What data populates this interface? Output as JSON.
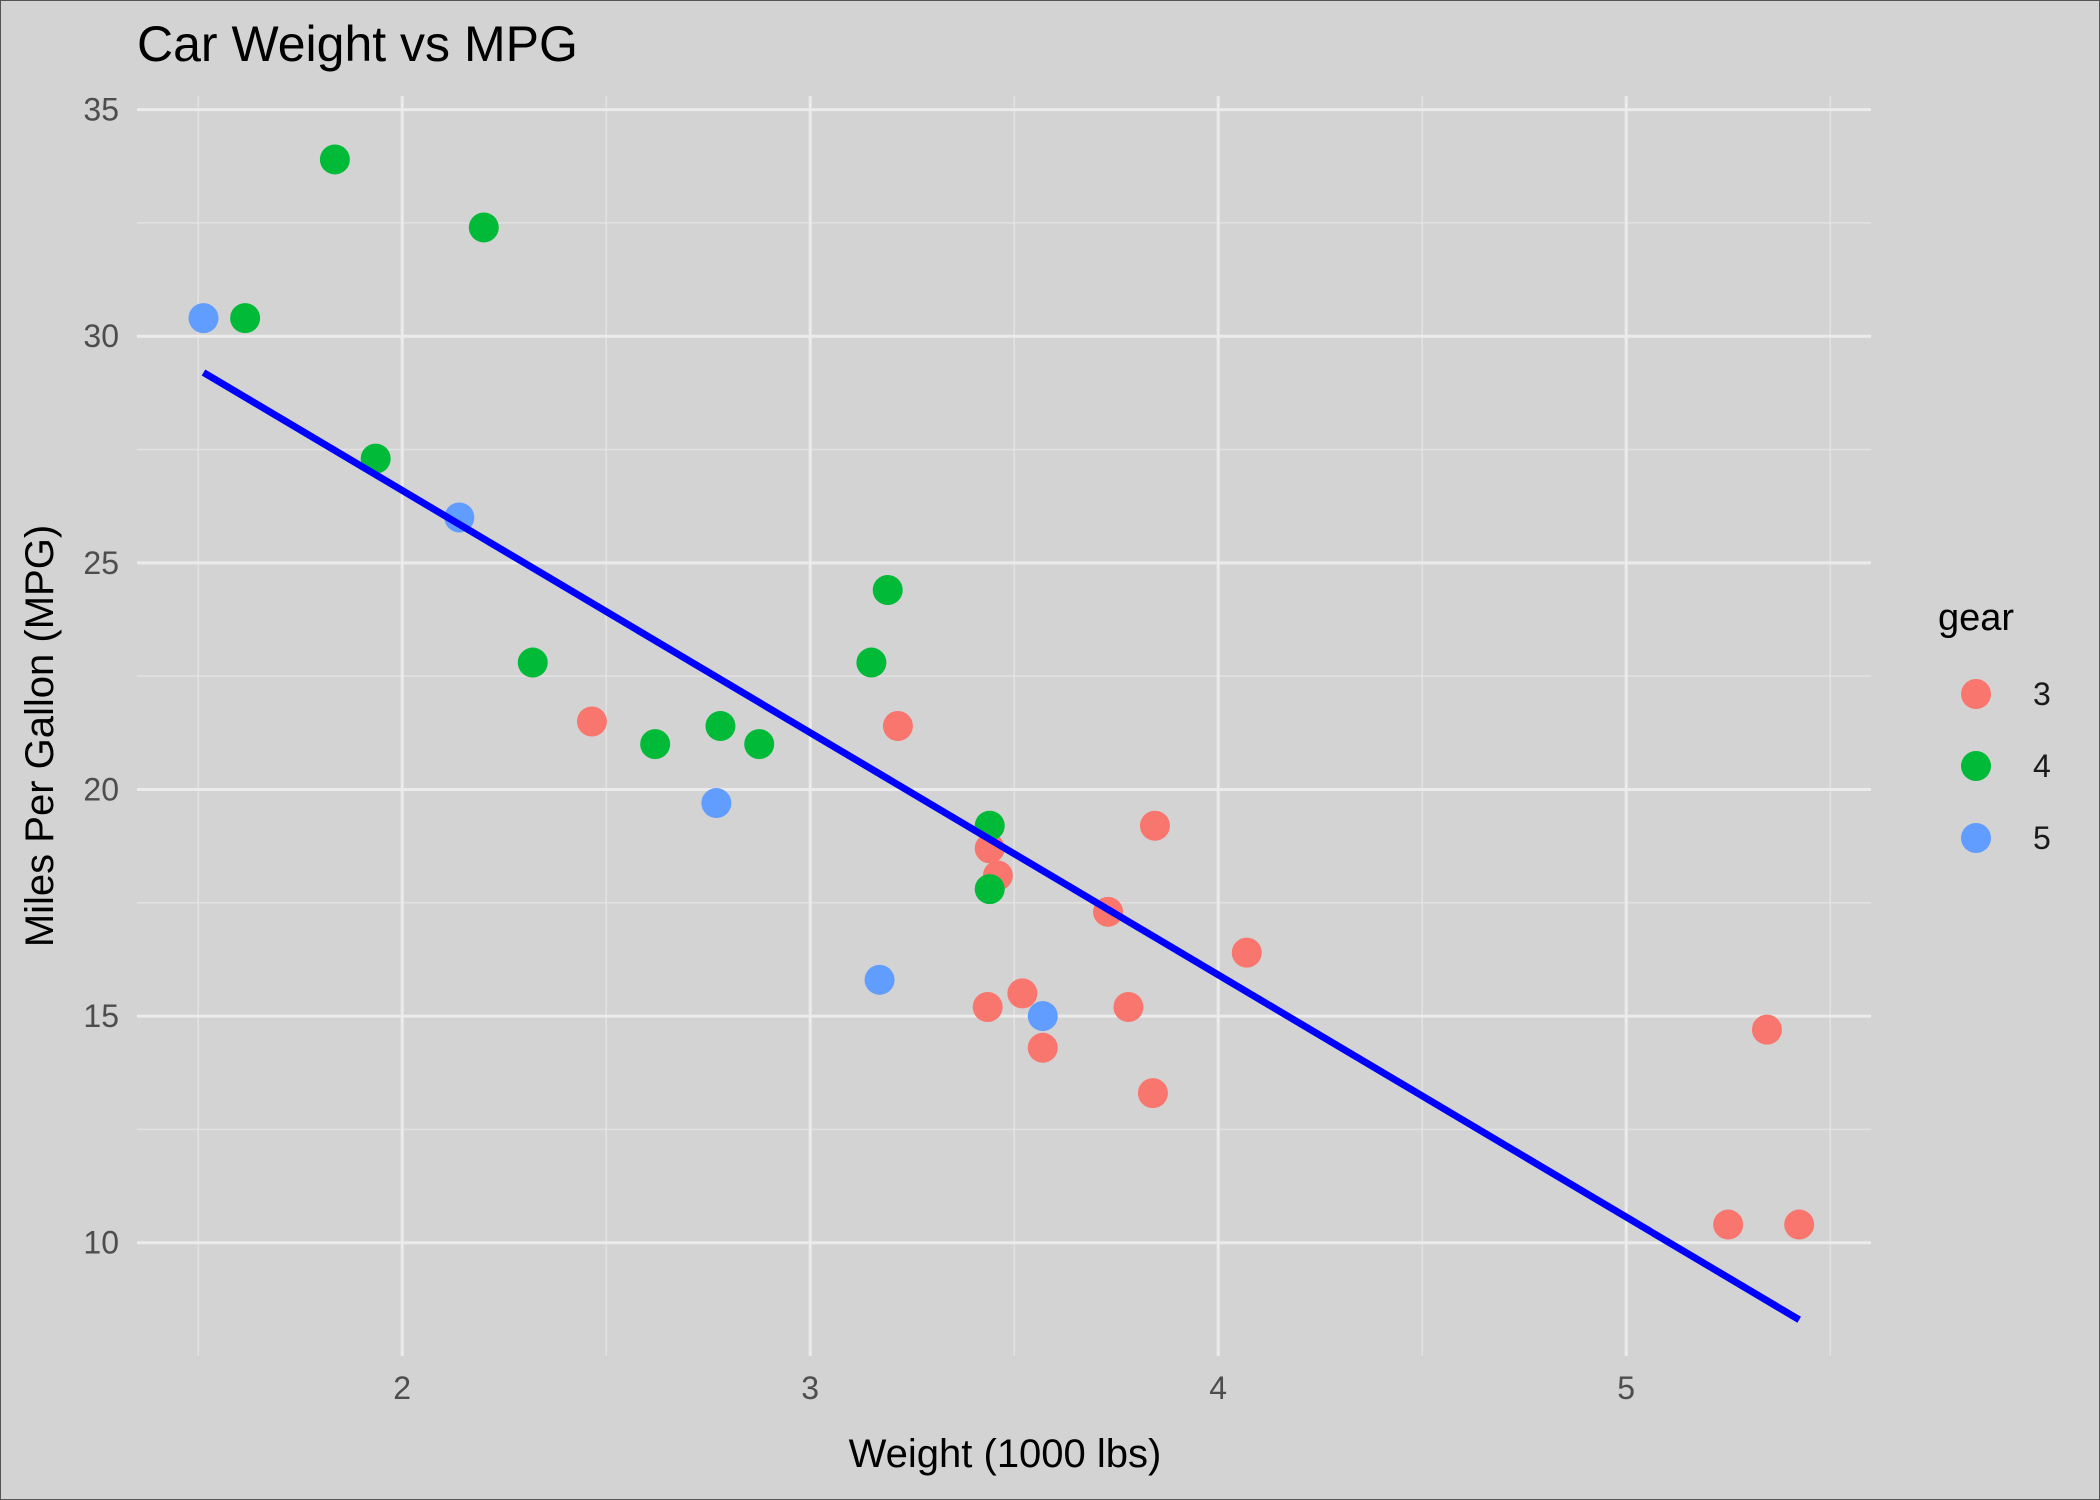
{
  "chart_data": {
    "type": "scatter",
    "title": "Car Weight vs MPG",
    "xlabel": "Weight (1000 lbs)",
    "ylabel": "Miles Per Gallon (MPG)",
    "xlim": [
      1.35,
      5.6
    ],
    "ylim": [
      7.5,
      35.3
    ],
    "x_ticks": [
      2,
      3,
      4,
      5
    ],
    "y_ticks": [
      10,
      15,
      20,
      25,
      30,
      35
    ],
    "x_minor": [
      1.5,
      2.5,
      3.5,
      4.5,
      5.5
    ],
    "y_minor": [
      12.5,
      17.5,
      22.5,
      27.5,
      32.5
    ],
    "grid": true,
    "legend": {
      "title": "gear",
      "position": "right",
      "entries": [
        {
          "label": "3",
          "color": "#F8766D"
        },
        {
          "label": "4",
          "color": "#00BA38"
        },
        {
          "label": "5",
          "color": "#619CFF"
        }
      ]
    },
    "series": [
      {
        "name": "3",
        "color": "#F8766D",
        "points": [
          [
            2.465,
            21.5
          ],
          [
            3.215,
            21.4
          ],
          [
            3.44,
            18.7
          ],
          [
            3.46,
            18.1
          ],
          [
            3.57,
            14.3
          ],
          [
            4.07,
            16.4
          ],
          [
            3.73,
            17.3
          ],
          [
            3.78,
            15.2
          ],
          [
            5.25,
            10.4
          ],
          [
            5.424,
            10.4
          ],
          [
            5.345,
            14.7
          ],
          [
            3.52,
            15.5
          ],
          [
            3.435,
            15.2
          ],
          [
            3.84,
            13.3
          ],
          [
            3.845,
            19.2
          ]
        ]
      },
      {
        "name": "4",
        "color": "#00BA38",
        "points": [
          [
            2.62,
            21.0
          ],
          [
            2.875,
            21.0
          ],
          [
            2.32,
            22.8
          ],
          [
            3.19,
            24.4
          ],
          [
            3.15,
            22.8
          ],
          [
            3.44,
            19.2
          ],
          [
            3.44,
            17.8
          ],
          [
            2.2,
            32.4
          ],
          [
            1.615,
            30.4
          ],
          [
            1.835,
            33.9
          ],
          [
            1.935,
            27.3
          ],
          [
            2.78,
            21.4
          ]
        ]
      },
      {
        "name": "5",
        "color": "#619CFF",
        "points": [
          [
            2.14,
            26.0
          ],
          [
            1.513,
            30.4
          ],
          [
            3.17,
            15.8
          ],
          [
            2.77,
            19.7
          ],
          [
            3.57,
            15.0
          ]
        ]
      }
    ],
    "trendline": {
      "type": "linear",
      "color": "#0000FF",
      "x": [
        1.513,
        5.424
      ],
      "y": [
        29.2,
        8.3
      ]
    }
  }
}
